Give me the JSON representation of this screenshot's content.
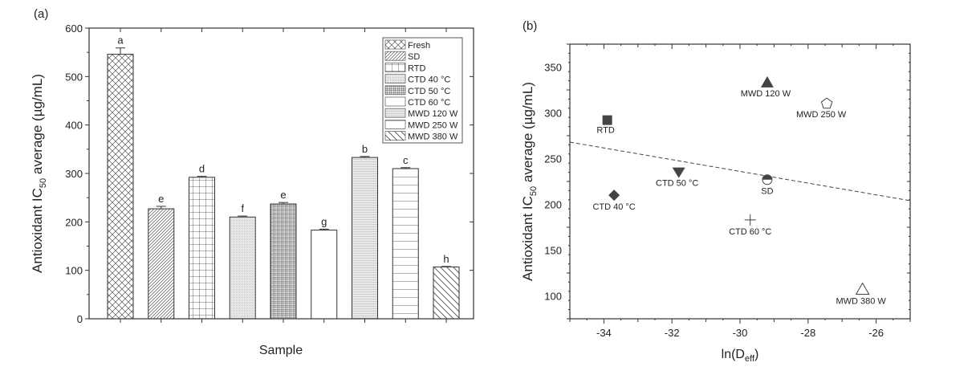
{
  "chart_data": [
    {
      "type": "bar",
      "panel_label": "(a)",
      "title": "",
      "xlabel": "Sample",
      "ylabel_parts": [
        "Antioxidant IC",
        "50",
        " average (µg/mL)"
      ],
      "ylim": [
        0,
        600
      ],
      "yticks": [
        "0",
        "100",
        "200",
        "300",
        "400",
        "500",
        "600"
      ],
      "categories": [
        "Fresh",
        "SD",
        "RTD",
        "CTD 40 °C",
        "CTD 50 °C",
        "CTD 60 °C",
        "MWD 120 W",
        "MWD 250 W",
        "MWD 380 W"
      ],
      "values": [
        546,
        227,
        292,
        210,
        237,
        183,
        333,
        310,
        107
      ],
      "errors": [
        13,
        5,
        2,
        2,
        3,
        2,
        2,
        2,
        1
      ],
      "significance_letters": [
        "a",
        "e",
        "d",
        "f",
        "e",
        "g",
        "b",
        "c",
        "h"
      ],
      "legend_placement": "top-right"
    },
    {
      "type": "scatter",
      "panel_label": "(b)",
      "xlabel_parts": [
        "ln(D",
        "eff",
        ")"
      ],
      "ylabel_parts": [
        "Antioxidant IC",
        "50",
        " average (µg/mL)"
      ],
      "xlim": [
        -35,
        -25
      ],
      "ylim": [
        75,
        375
      ],
      "xticks": [
        "-34",
        "-32",
        "-30",
        "-28",
        "-26"
      ],
      "yticks": [
        "100",
        "150",
        "200",
        "250",
        "300",
        "350"
      ],
      "points": [
        {
          "label": "RTD",
          "x": -33.9,
          "y": 292,
          "marker": "square-filled"
        },
        {
          "label": "MWD 120 W",
          "x": -29.2,
          "y": 333,
          "marker": "triangle-filled"
        },
        {
          "label": "MWD 250 W",
          "x": -27.45,
          "y": 310,
          "marker": "pentagon-open"
        },
        {
          "label": "CTD 50 °C",
          "x": -31.8,
          "y": 235,
          "marker": "triangle-down-filled"
        },
        {
          "label": "SD",
          "x": -29.2,
          "y": 227,
          "marker": "circle-half"
        },
        {
          "label": "CTD 40 °C",
          "x": -33.7,
          "y": 210,
          "marker": "diamond-filled"
        },
        {
          "label": "CTD 60 °C",
          "x": -29.7,
          "y": 183,
          "marker": "plus"
        },
        {
          "label": "MWD 380 W",
          "x": -26.4,
          "y": 107,
          "marker": "triangle-open"
        }
      ],
      "trendline": {
        "x": [
          -35,
          -25
        ],
        "y": [
          268,
          204
        ],
        "style": "dashed"
      }
    }
  ]
}
